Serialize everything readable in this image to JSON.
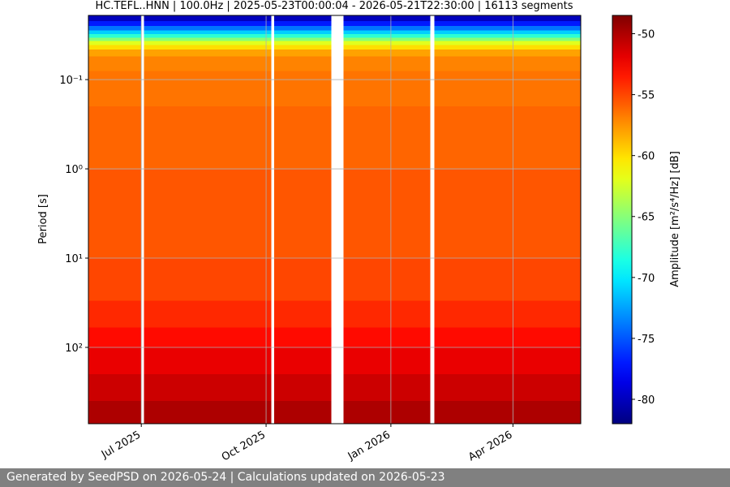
{
  "chart_data": {
    "type": "spectrogram",
    "title": "HC.TEFL..HNN | 100.0Hz | 2025-05-23T00:00:04 - 2026-05-21T22:30:00 | 16113 segments",
    "ylabel": "Period [s]",
    "yscale": "log",
    "ylim": [
      716,
      0.0191
    ],
    "yticks": [
      {
        "value": 0.1,
        "label": "10⁻¹"
      },
      {
        "value": 1,
        "label": "10⁰"
      },
      {
        "value": 10,
        "label": "10¹"
      },
      {
        "value": 100,
        "label": "10²"
      }
    ],
    "xlim": [
      "2025-05-23",
      "2026-05-21"
    ],
    "xticks": [
      {
        "value": "2025-07-01",
        "label": "Jul 2025"
      },
      {
        "value": "2025-10-01",
        "label": "Oct 2025"
      },
      {
        "value": "2026-01-01",
        "label": "Jan 2026"
      },
      {
        "value": "2026-04-01",
        "label": "Apr 2026"
      }
    ],
    "grid": true,
    "segments": [
      [
        "2025-05-23",
        "2025-07-01"
      ],
      [
        "2025-07-03",
        "2025-10-05"
      ],
      [
        "2025-10-07",
        "2025-11-18"
      ],
      [
        "2025-11-27",
        "2026-01-30"
      ],
      [
        "2026-02-02",
        "2026-05-21"
      ]
    ],
    "period_bands": [
      0.0191,
      0.022,
      0.025,
      0.028,
      0.031,
      0.034,
      0.037,
      0.041,
      0.046,
      0.055,
      0.08,
      0.2,
      1,
      10,
      30,
      60,
      100,
      200,
      400,
      716
    ],
    "amplitude": [
      -80,
      -77,
      -74,
      -71,
      -68,
      -65,
      -62,
      -60,
      -58,
      -57,
      -56.5,
      -56,
      -55.5,
      -55,
      -54,
      -53,
      -52,
      -51,
      -50
    ],
    "colormap": "jet",
    "clim": [
      -82,
      -48.5
    ],
    "cticks": [
      -50,
      -55,
      -60,
      -65,
      -70,
      -75,
      -80
    ],
    "clabel": "Amplitude [m²/s⁴/Hz] [dB]"
  },
  "footer": "Generated by SeedPSD on 2026-05-24 | Calculations updated on 2026-05-23"
}
